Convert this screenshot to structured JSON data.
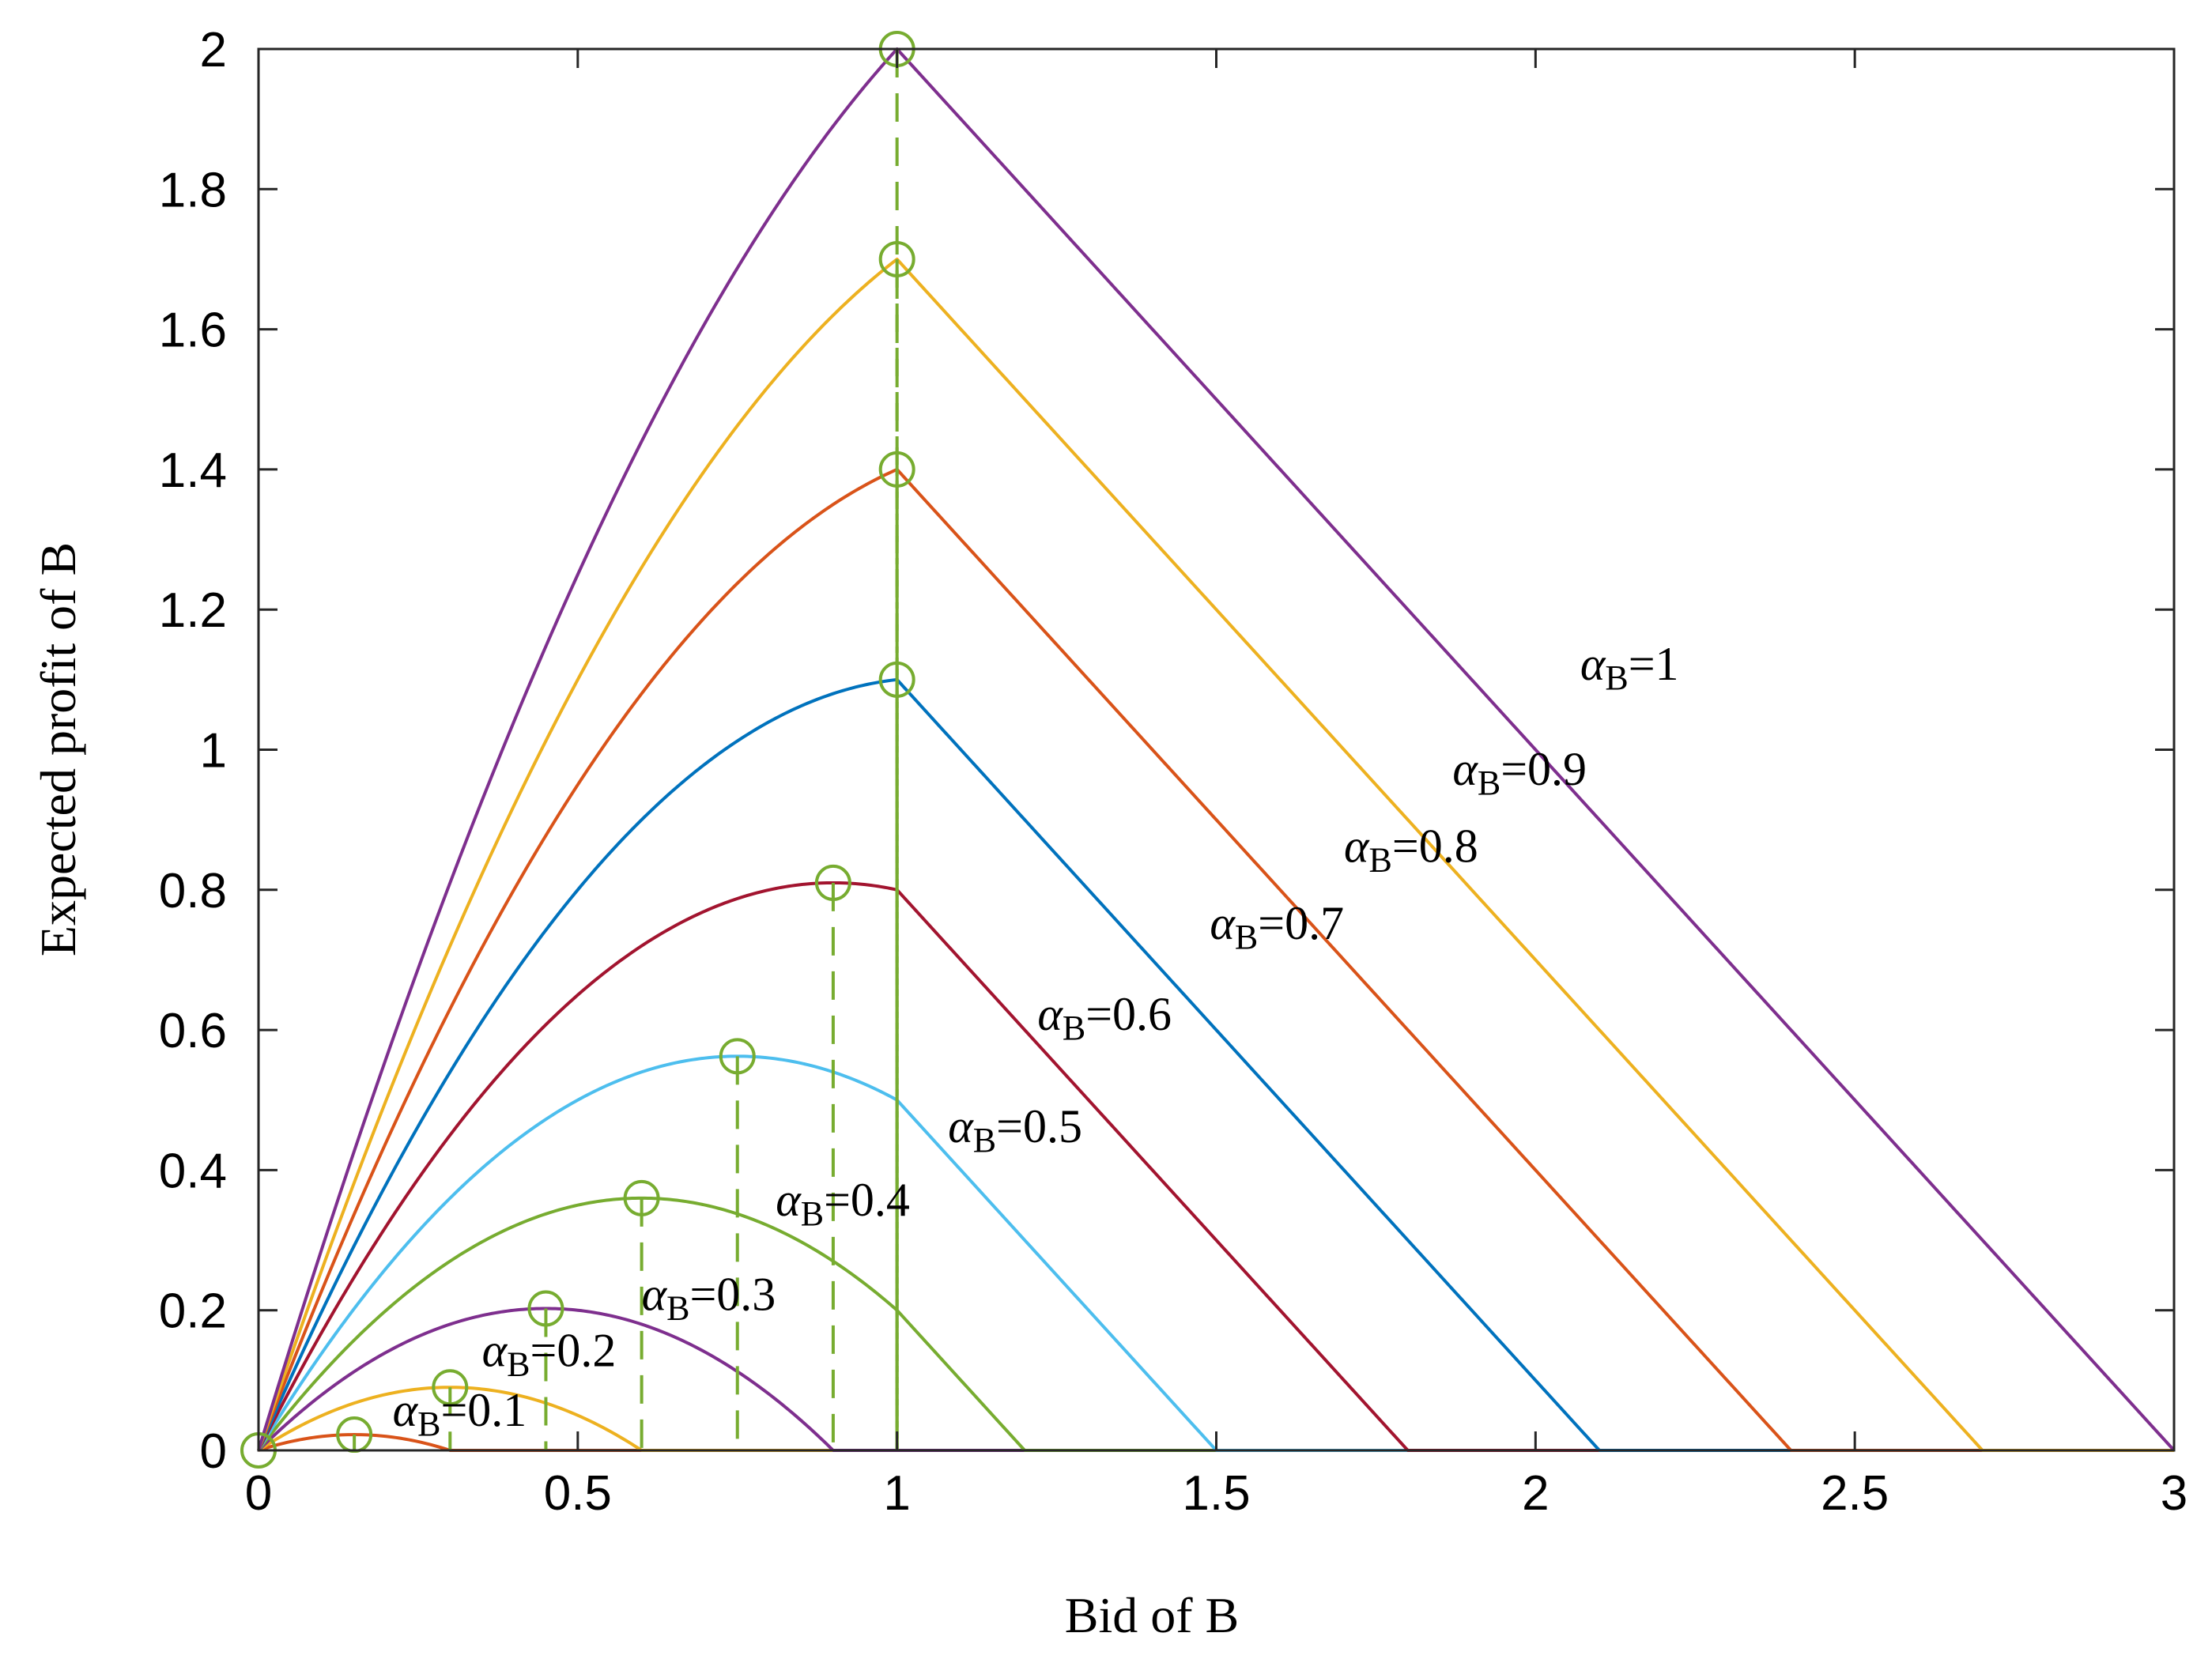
{
  "chart_data": {
    "type": "line",
    "title": "",
    "xlabel": "Bid of  B",
    "ylabel": "Expected profit of B",
    "xlim": [
      0,
      3
    ],
    "ylim": [
      0,
      2
    ],
    "xticks": [
      0,
      0.5,
      1,
      1.5,
      2,
      2.5,
      3
    ],
    "xtick_labels": [
      "0",
      "0.5",
      "1",
      "1.5",
      "2",
      "2.5",
      "3"
    ],
    "yticks": [
      0,
      0.2,
      0.4,
      0.6,
      0.8,
      1,
      1.2,
      1.4,
      1.6,
      1.8,
      2
    ],
    "ytick_labels": [
      "0",
      "0.2",
      "0.4",
      "0.6",
      "0.8",
      "1",
      "1.2",
      "1.4",
      "1.6",
      "1.8",
      "2"
    ],
    "grid": false,
    "model": "profit = b*(3*alpha - b) for b <= 1; profit = 3*alpha - b for b > 1 (clipped at 0); optimum at b = min(1.5*alpha, 1)",
    "series": [
      {
        "name": "αB=0.1",
        "alpha": 0.1,
        "color": "#D95319",
        "optimum": {
          "x": 0.15,
          "y": 0.0225
        },
        "label": {
          "sym": "α",
          "sub": "B",
          "text": "=0.1",
          "at": [
            0.21,
            0.035
          ]
        }
      },
      {
        "name": "αB=0.2",
        "alpha": 0.2,
        "color": "#EDB120",
        "optimum": {
          "x": 0.3,
          "y": 0.09
        },
        "label": {
          "sym": "α",
          "sub": "B",
          "text": "=0.2",
          "at": [
            0.35,
            0.12
          ]
        }
      },
      {
        "name": "αB=0.3",
        "alpha": 0.3,
        "color": "#7E2F8E",
        "optimum": {
          "x": 0.45,
          "y": 0.2025
        },
        "label": {
          "sym": "α",
          "sub": "B",
          "text": "=0.3",
          "at": [
            0.6,
            0.2
          ]
        }
      },
      {
        "name": "αB=0.4",
        "alpha": 0.4,
        "color": "#77AC30",
        "optimum": {
          "x": 0.6,
          "y": 0.36
        },
        "label": {
          "sym": "α",
          "sub": "B",
          "text": "=0.4",
          "at": [
            0.81,
            0.335
          ]
        }
      },
      {
        "name": "αB=0.5",
        "alpha": 0.5,
        "color": "#4DBEEE",
        "optimum": {
          "x": 0.75,
          "y": 0.5625
        },
        "label": {
          "sym": "α",
          "sub": "B",
          "text": "=0.5",
          "at": [
            1.08,
            0.44
          ]
        }
      },
      {
        "name": "αB=0.6",
        "alpha": 0.6,
        "color": "#A2142F",
        "optimum": {
          "x": 0.9,
          "y": 0.81
        },
        "label": {
          "sym": "α",
          "sub": "B",
          "text": "=0.6",
          "at": [
            1.22,
            0.6
          ]
        }
      },
      {
        "name": "αB=0.7",
        "alpha": 0.7,
        "color": "#0072BD",
        "optimum": {
          "x": 1.0,
          "y": 1.1
        },
        "label": {
          "sym": "α",
          "sub": "B",
          "text": "=0.7",
          "at": [
            1.49,
            0.73
          ]
        }
      },
      {
        "name": "αB=0.8",
        "alpha": 0.8,
        "color": "#D95319",
        "optimum": {
          "x": 1.0,
          "y": 1.4
        },
        "label": {
          "sym": "α",
          "sub": "B",
          "text": "=0.8",
          "at": [
            1.7,
            0.84
          ]
        }
      },
      {
        "name": "αB=0.9",
        "alpha": 0.9,
        "color": "#EDB120",
        "optimum": {
          "x": 1.0,
          "y": 1.7
        },
        "label": {
          "sym": "α",
          "sub": "B",
          "text": "=0.9",
          "at": [
            1.87,
            0.95
          ]
        }
      },
      {
        "name": "αB=1",
        "alpha": 1.0,
        "color": "#7E2F8E",
        "optimum": {
          "x": 1.0,
          "y": 2.0
        },
        "label": {
          "sym": "α",
          "sub": "B",
          "text": "=1",
          "at": [
            2.07,
            1.1
          ]
        }
      }
    ],
    "marker_color": "#77AC30",
    "marker": "open-circle",
    "dropline_style": "dashed",
    "origin_marker": {
      "x": 0,
      "y": 0
    }
  }
}
